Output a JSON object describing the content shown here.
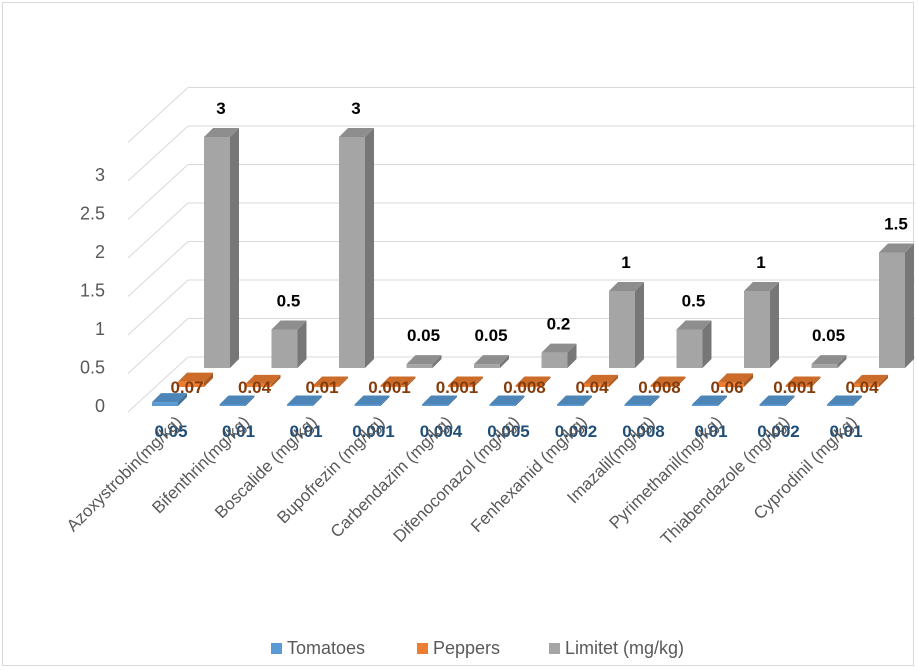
{
  "chart_data": {
    "type": "bar",
    "subtype": "3d-clustered-column",
    "categories": [
      "Azoxystrobin(mg/kg)",
      "Bifenthrin(mg/kg)",
      "Boscalide (mg/kg)",
      "Bupofrezin (mg/kg)",
      "Carbendazim (mg/kg)",
      "Difenoconazol (mg/kg)",
      "Fenhexamid (mg/kg)",
      "Imazalil(mg/kg)",
      "Pyrimethanil(mg/kg)",
      "Thiabendazole (mg/kg)",
      "Cyprodinil (mg/kg)"
    ],
    "series": [
      {
        "name": "Tomatoes",
        "color": "#5b9bd5",
        "label_color": "#1f4e79",
        "values": [
          0.05,
          0.01,
          0.01,
          0.001,
          0.004,
          0.005,
          0.002,
          0.008,
          0.01,
          0.002,
          0.01
        ],
        "labels": [
          "0.05",
          "0.01",
          "0.01",
          "0.001",
          "0.004",
          "0.005",
          "0.002",
          "0.008",
          "0.01",
          "0.002",
          "0.01"
        ]
      },
      {
        "name": "Peppers",
        "color": "#ed7d31",
        "label_color": "#843c0c",
        "values": [
          0.07,
          0.04,
          0.01,
          0.001,
          0.001,
          0.008,
          0.04,
          0.008,
          0.06,
          0.001,
          0.04
        ],
        "labels": [
          "0.07",
          "0.04",
          "0.01",
          "0.001",
          "0.001",
          "0.008",
          "0.04",
          "0.008",
          "0.06",
          "0.001",
          "0.04"
        ]
      },
      {
        "name": "Limitet (mg/kg)",
        "color": "#a5a5a5",
        "label_color": "#000000",
        "values": [
          3,
          0.5,
          3,
          0.05,
          0.05,
          0.2,
          1,
          0.5,
          1,
          0.05,
          1.5
        ],
        "labels": [
          "3",
          "0.5",
          "3",
          "0.05",
          "0.05",
          "0.2",
          "1",
          "0.5",
          "1",
          "0.05",
          "1.5"
        ]
      }
    ],
    "y_ticks": [
      "0",
      "0.5",
      "1",
      "1.5",
      "2",
      "2.5",
      "3"
    ],
    "ylim": [
      0,
      3.5
    ],
    "title": "",
    "xlabel": "",
    "ylabel": "",
    "grid": true,
    "legend_position": "bottom"
  }
}
